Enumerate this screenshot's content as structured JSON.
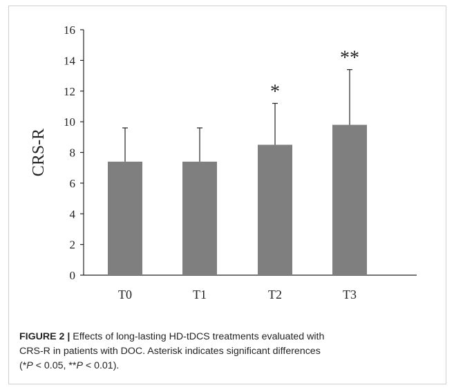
{
  "chart_data": {
    "type": "bar",
    "categories": [
      "T0",
      "T1",
      "T2",
      "T3"
    ],
    "values": [
      7.4,
      7.4,
      8.5,
      9.8
    ],
    "error_upper": [
      9.6,
      9.6,
      11.2,
      13.4
    ],
    "significance": [
      "",
      "",
      "*",
      "**"
    ],
    "ylabel": "CRS-R",
    "xlabel": "",
    "ylim": [
      0,
      16
    ],
    "yticks": [
      "0",
      "2",
      "4",
      "6",
      "8",
      "10",
      "12",
      "14",
      "16"
    ],
    "bar_color": "#7f7f7f",
    "grid": false,
    "legend": "none"
  },
  "caption": {
    "label": "FIGURE 2 |",
    "line1": " Effects of long-lasting HD-tDCS treatments evaluated with",
    "line2": "CRS-R in patients with DOC. Asterisk indicates significant differences",
    "line3_open": "(*",
    "p1": "P",
    "line3_mid": " < 0.05, **",
    "p2": "P",
    "line3_close": " < 0.01)."
  }
}
